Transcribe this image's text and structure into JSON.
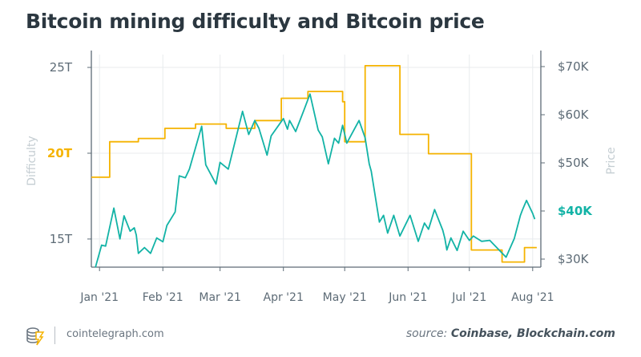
{
  "title": "Bitcoin mining difficulty and Bitcoin price",
  "footer": {
    "site": "cointelegraph.com",
    "source_prefix": "source:",
    "source_names": "Coinbase, Blockchain.com"
  },
  "colors": {
    "difficulty": "#f5b300",
    "price": "#12b3a6",
    "axis": "#5d6b76",
    "grid": "#e8ebee",
    "axis_title": "#c4cdd2"
  },
  "chart_data": {
    "type": "line",
    "title": "Bitcoin mining difficulty and Bitcoin price",
    "xlabel": "",
    "ylabel_left": "Difficulty",
    "ylabel_right": "Price",
    "xlim": [
      "2020-12-28",
      "2021-08-05"
    ],
    "ylim_left": [
      13.36,
      25.75
    ],
    "ylim_right": [
      28.33,
      72.5
    ],
    "grid": true,
    "x_ticks": [
      {
        "date": "2021-01-01",
        "label": "Jan '21"
      },
      {
        "date": "2021-02-01",
        "label": "Feb '21"
      },
      {
        "date": "2021-03-01",
        "label": "Mar '21"
      },
      {
        "date": "2021-04-01",
        "label": "Apr '21"
      },
      {
        "date": "2021-05-01",
        "label": "May '21"
      },
      {
        "date": "2021-06-01",
        "label": "Jun '21"
      },
      {
        "date": "2021-07-01",
        "label": "Jul '21"
      },
      {
        "date": "2021-08-01",
        "label": "Aug '21"
      }
    ],
    "y_ticks_left": [
      {
        "value": 25,
        "label": "25T"
      },
      {
        "value": 20,
        "label": "20T",
        "highlight": true
      },
      {
        "value": 15,
        "label": "15T"
      }
    ],
    "y_ticks_right": [
      {
        "value": 70,
        "label": "$70K"
      },
      {
        "value": 60,
        "label": "$60K"
      },
      {
        "value": 50,
        "label": "$50K"
      },
      {
        "value": 40,
        "label": "$40K",
        "highlight": true
      },
      {
        "value": 30,
        "label": "$30K"
      }
    ],
    "series": [
      {
        "name": "Difficulty",
        "axis": "left",
        "unit": "T",
        "step": true,
        "points": [
          [
            "2020-12-28",
            18.6
          ],
          [
            "2021-01-06",
            20.67
          ],
          [
            "2021-01-20",
            20.86
          ],
          [
            "2021-02-02",
            21.45
          ],
          [
            "2021-02-17",
            21.7
          ],
          [
            "2021-03-04",
            21.45
          ],
          [
            "2021-03-18",
            21.9
          ],
          [
            "2021-03-31",
            23.2
          ],
          [
            "2021-04-13",
            23.6
          ],
          [
            "2021-04-30",
            23.0
          ],
          [
            "2021-05-01",
            20.67
          ],
          [
            "2021-05-11",
            25.1
          ],
          [
            "2021-05-28",
            21.1
          ],
          [
            "2021-06-11",
            19.97
          ],
          [
            "2021-07-02",
            14.36
          ],
          [
            "2021-07-17",
            13.66
          ],
          [
            "2021-07-28",
            14.5
          ],
          [
            "2021-08-03",
            14.5
          ]
        ]
      },
      {
        "name": "Price",
        "axis": "right",
        "unit": "$K",
        "step": false,
        "points": [
          [
            "2020-12-30",
            28.3
          ],
          [
            "2021-01-02",
            32.9
          ],
          [
            "2021-01-04",
            32.7
          ],
          [
            "2021-01-08",
            40.6
          ],
          [
            "2021-01-11",
            34.2
          ],
          [
            "2021-01-13",
            39.0
          ],
          [
            "2021-01-16",
            35.8
          ],
          [
            "2021-01-18",
            36.5
          ],
          [
            "2021-01-19",
            35.0
          ],
          [
            "2021-01-20",
            31.2
          ],
          [
            "2021-01-23",
            32.4
          ],
          [
            "2021-01-26",
            31.2
          ],
          [
            "2021-01-29",
            34.4
          ],
          [
            "2021-02-01",
            33.6
          ],
          [
            "2021-02-03",
            37.0
          ],
          [
            "2021-02-07",
            39.8
          ],
          [
            "2021-02-09",
            47.3
          ],
          [
            "2021-02-12",
            46.9
          ],
          [
            "2021-02-14",
            48.7
          ],
          [
            "2021-02-20",
            57.6
          ],
          [
            "2021-02-22",
            49.6
          ],
          [
            "2021-02-27",
            45.6
          ],
          [
            "2021-03-01",
            50.1
          ],
          [
            "2021-03-05",
            48.7
          ],
          [
            "2021-03-12",
            60.7
          ],
          [
            "2021-03-15",
            55.9
          ],
          [
            "2021-03-18",
            58.8
          ],
          [
            "2021-03-20",
            57.2
          ],
          [
            "2021-03-24",
            51.6
          ],
          [
            "2021-03-26",
            55.6
          ],
          [
            "2021-04-01",
            59.2
          ],
          [
            "2021-04-03",
            57.0
          ],
          [
            "2021-04-04",
            58.8
          ],
          [
            "2021-04-07",
            56.5
          ],
          [
            "2021-04-11",
            60.9
          ],
          [
            "2021-04-14",
            64.3
          ],
          [
            "2021-04-18",
            56.8
          ],
          [
            "2021-04-20",
            55.4
          ],
          [
            "2021-04-23",
            49.8
          ],
          [
            "2021-04-26",
            55.1
          ],
          [
            "2021-04-28",
            54.1
          ],
          [
            "2021-04-30",
            57.8
          ],
          [
            "2021-05-02",
            54.1
          ],
          [
            "2021-05-08",
            58.8
          ],
          [
            "2021-05-11",
            55.2
          ],
          [
            "2021-05-13",
            49.8
          ],
          [
            "2021-05-14",
            48.3
          ],
          [
            "2021-05-18",
            37.7
          ],
          [
            "2021-05-20",
            39.1
          ],
          [
            "2021-05-22",
            35.4
          ],
          [
            "2021-05-25",
            39.1
          ],
          [
            "2021-05-28",
            34.8
          ],
          [
            "2021-06-02",
            39.1
          ],
          [
            "2021-06-06",
            33.7
          ],
          [
            "2021-06-09",
            37.5
          ],
          [
            "2021-06-11",
            36.2
          ],
          [
            "2021-06-14",
            40.3
          ],
          [
            "2021-06-18",
            36.0
          ],
          [
            "2021-06-19",
            34.3
          ],
          [
            "2021-06-20",
            31.9
          ],
          [
            "2021-06-22",
            34.4
          ],
          [
            "2021-06-25",
            31.8
          ],
          [
            "2021-06-28",
            35.8
          ],
          [
            "2021-07-01",
            33.9
          ],
          [
            "2021-07-03",
            34.8
          ],
          [
            "2021-07-07",
            33.7
          ],
          [
            "2021-07-11",
            33.9
          ],
          [
            "2021-07-19",
            30.4
          ],
          [
            "2021-07-23",
            34.3
          ],
          [
            "2021-07-26",
            39.1
          ],
          [
            "2021-07-27",
            40.2
          ],
          [
            "2021-07-29",
            42.2
          ],
          [
            "2021-08-01",
            39.5
          ],
          [
            "2021-08-02",
            38.3
          ]
        ]
      }
    ]
  }
}
